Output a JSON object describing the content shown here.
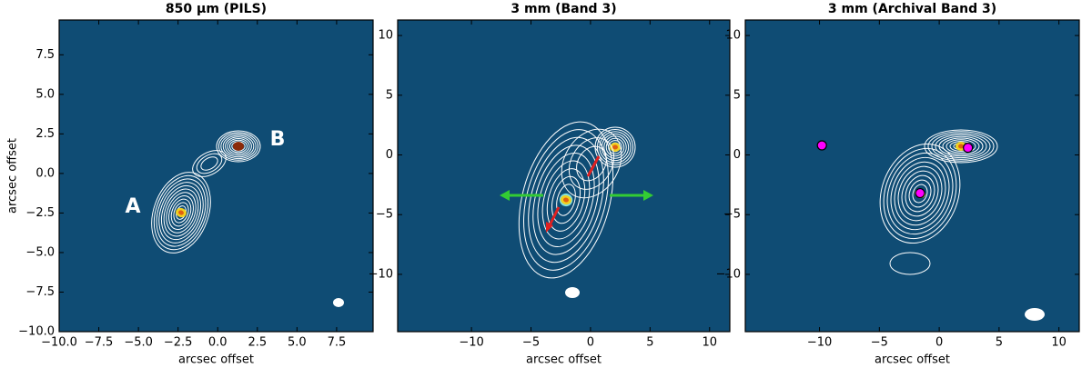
{
  "chart_data": [
    {
      "type": "contour",
      "title": "850 μm (PILS)",
      "xlabel": "arcsec offset",
      "ylabel": "arcsec offset",
      "xlim": [
        -10,
        9.8
      ],
      "ylim": [
        -10,
        9.7
      ],
      "xticks": [
        {
          "value": -10,
          "label": "−10.0"
        },
        {
          "value": -7.5,
          "label": "−7.5"
        },
        {
          "value": -5,
          "label": "−5.0"
        },
        {
          "value": -2.5,
          "label": "−2.5"
        },
        {
          "value": 0,
          "label": "0.0"
        },
        2.5,
        {
          "value": 5,
          "label": "5.0"
        },
        7.5
      ],
      "yticks": [
        {
          "value": -10,
          "label": "−10.0"
        },
        {
          "value": -7.5,
          "label": "−7.5"
        },
        {
          "value": -5,
          "label": "−5.0"
        },
        {
          "value": -2.5,
          "label": "−2.5"
        },
        {
          "value": 0,
          "label": "0.0"
        },
        2.5,
        {
          "value": 5,
          "label": "5.0"
        },
        7.5
      ],
      "annotations": [
        "A",
        "B"
      ],
      "background": "#0f4c74"
    },
    {
      "type": "contour",
      "title": "3 mm (Band 3)",
      "xlabel": "arcsec offset",
      "xlim": [
        -16.2,
        11.7
      ],
      "ylim": [
        -14.8,
        11.3
      ],
      "xticks": [
        {
          "value": -10,
          "label": "−10"
        },
        {
          "value": -5,
          "label": "−5"
        },
        0,
        5,
        10
      ],
      "yticks": [
        {
          "value": -10,
          "label": "−10"
        },
        {
          "value": -5,
          "label": "−5"
        },
        0,
        5,
        10
      ],
      "background": "#0f4c74"
    },
    {
      "type": "contour",
      "title": "3 mm (Archival Band 3)",
      "xlabel": "arcsec offset",
      "xlim": [
        -16.2,
        11.7
      ],
      "ylim": [
        -14.8,
        11.3
      ],
      "xticks": [
        {
          "value": -10,
          "label": "−10"
        },
        {
          "value": -5,
          "label": "−5"
        },
        0,
        5,
        10
      ],
      "yticks": [
        {
          "value": -10,
          "label": "−10"
        },
        {
          "value": -5,
          "label": "−5"
        },
        0,
        5,
        10
      ],
      "points": {
        "x": [
          -9.8,
          -1.6,
          2.4
        ],
        "y": [
          0.8,
          -3.2,
          0.6
        ],
        "color": "#ff00ff"
      },
      "background": "#0f4c74"
    }
  ]
}
